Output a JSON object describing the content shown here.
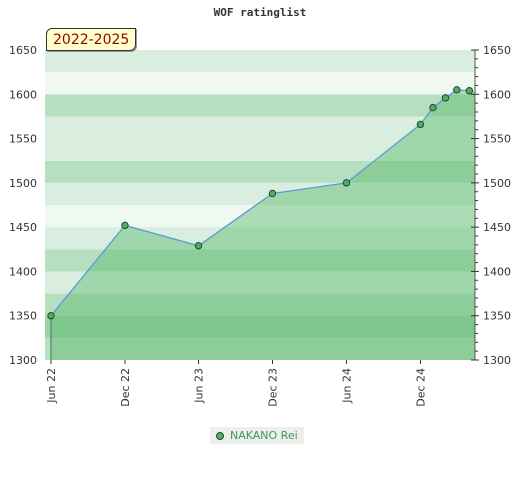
{
  "chart_data": {
    "type": "line",
    "title": "WOF ratinglist",
    "badge": "2022-2025",
    "ylim": [
      1300,
      1650
    ],
    "y_ticks": [
      1300,
      1350,
      1400,
      1450,
      1500,
      1550,
      1600,
      1650
    ],
    "y_tick_labels": [
      "1300",
      "1350",
      "1400",
      "1450",
      "1500",
      "1550",
      "1600",
      "1650"
    ],
    "x_ticks": [
      "2022-06-01",
      "2022-12-01",
      "2023-06-01",
      "2023-12-01",
      "2024-06-01",
      "2024-12-01"
    ],
    "x_tick_labels": [
      "Jun 22",
      "Dec 22",
      "Jun 23",
      "Dec 23",
      "Jun 24",
      "Dec 24"
    ],
    "xlim": [
      "2022-06-01",
      "2025-04-15"
    ],
    "series": [
      {
        "name": "NAKANO Rei",
        "points": [
          {
            "x": "2022-06-01",
            "y": 1350
          },
          {
            "x": "2022-12-01",
            "y": 1452
          },
          {
            "x": "2023-06-01",
            "y": 1429
          },
          {
            "x": "2023-12-01",
            "y": 1488
          },
          {
            "x": "2024-06-01",
            "y": 1500
          },
          {
            "x": "2024-12-01",
            "y": 1566
          },
          {
            "x": "2025-01-01",
            "y": 1585
          },
          {
            "x": "2025-02-01",
            "y": 1596
          },
          {
            "x": "2025-03-01",
            "y": 1605
          },
          {
            "x": "2025-04-01",
            "y": 1604
          }
        ]
      }
    ],
    "legend_position": "bottom-center",
    "colors": {
      "line": "#5b9bd5",
      "area": "#5cb86c",
      "marker": "#4caf68",
      "marker_edge": "#1f4d2b",
      "band_a": "#d9eedf",
      "band_b": "#b6dfc0",
      "band_c": "#99d3a7",
      "legend_text": "#3a9a5a"
    }
  }
}
